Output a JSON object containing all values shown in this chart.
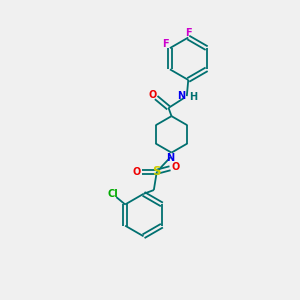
{
  "bg_color": "#f0f0f0",
  "atom_colors": {
    "C": "#007070",
    "N": "#0000ee",
    "O": "#ee0000",
    "S": "#cccc00",
    "F": "#cc00cc",
    "Cl": "#00aa00",
    "H": "#007070"
  },
  "bond_color": "#007070",
  "lw": 1.3,
  "fs": 7.0,
  "r_hex": 0.72,
  "pip_r": 0.62
}
